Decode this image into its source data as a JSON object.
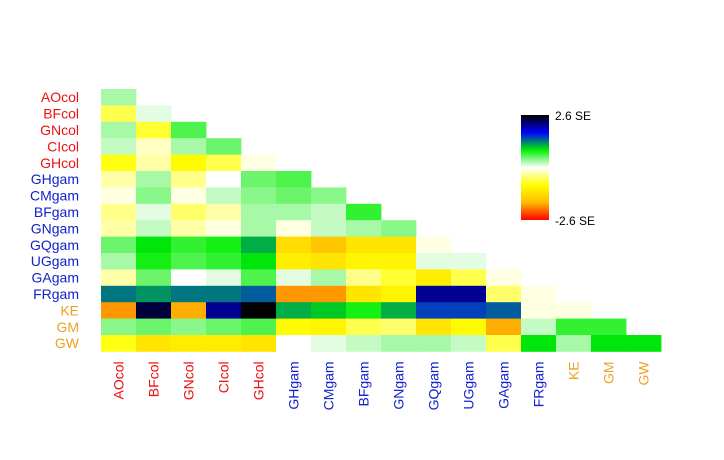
{
  "chart_data": {
    "type": "heatmap",
    "layout": "lower-triangle",
    "labels": [
      "AOcol",
      "BFcol",
      "GNcol",
      "CIcol",
      "GHcol",
      "GHgam",
      "CMgam",
      "BFgam",
      "GNgam",
      "GQgam",
      "UGgam",
      "GAgam",
      "FRgam",
      "KE",
      "GM",
      "GW"
    ],
    "groups": [
      "col",
      "col",
      "col",
      "col",
      "col",
      "gam",
      "gam",
      "gam",
      "gam",
      "gam",
      "gam",
      "gam",
      "gam",
      "other",
      "other",
      "other"
    ],
    "group_colors": {
      "col": "#ee1111",
      "gam": "#1122cc",
      "other": "#f0a020"
    },
    "values_se": [
      [
        0.3
      ],
      [
        -0.6,
        0.1
      ],
      [
        0.3,
        -0.7,
        0.6
      ],
      [
        0.2,
        -0.2,
        0.3,
        0.5
      ],
      [
        -0.8,
        -0.3,
        -0.9,
        -0.6,
        -0.1
      ],
      [
        -0.3,
        0.3,
        -0.4,
        0.0,
        0.5,
        0.6
      ],
      [
        -0.1,
        0.4,
        -0.1,
        0.2,
        0.4,
        0.5,
        0.4
      ],
      [
        -0.4,
        0.1,
        -0.5,
        -0.3,
        0.3,
        0.3,
        0.2,
        0.7
      ],
      [
        -0.3,
        0.2,
        -0.3,
        -0.1,
        0.3,
        -0.1,
        0.2,
        0.3,
        0.4
      ],
      [
        0.5,
        0.9,
        0.7,
        0.8,
        1.1,
        -1.3,
        -1.6,
        -1.2,
        -1.2,
        -0.1
      ],
      [
        0.3,
        0.8,
        0.6,
        0.7,
        0.9,
        -1.1,
        -1.2,
        -1.0,
        -1.0,
        0.1,
        0.1
      ],
      [
        -0.3,
        0.5,
        0.0,
        0.1,
        0.6,
        0.1,
        0.3,
        -0.4,
        -0.7,
        -1.1,
        -0.6,
        -0.1
      ],
      [
        1.3,
        1.2,
        1.3,
        1.3,
        1.4,
        -1.9,
        -1.9,
        -1.2,
        -1.0,
        2.1,
        2.1,
        -0.5,
        -0.1
      ],
      [
        -1.9,
        2.4,
        -1.8,
        2.1,
        2.6,
        1.1,
        1.0,
        0.8,
        1.1,
        1.5,
        1.5,
        1.4,
        -0.1,
        -0.1
      ],
      [
        0.4,
        0.5,
        0.4,
        0.5,
        0.6,
        -0.9,
        -1.0,
        -0.6,
        -0.5,
        -1.2,
        -0.9,
        -1.8,
        0.2,
        0.7,
        0.7
      ],
      [
        -0.8,
        -1.2,
        -1.1,
        -1.1,
        -1.2,
        0.0,
        0.1,
        0.2,
        0.3,
        0.3,
        0.2,
        -0.6,
        0.9,
        0.3,
        0.9,
        0.9
      ]
    ],
    "scale": {
      "min": -2.6,
      "max": 2.6,
      "min_label": "-2.6 SE",
      "max_label": "2.6 SE"
    },
    "color_stops": [
      "#ff0000",
      "#ffbb00",
      "#ffff00",
      "#ffffff",
      "#00ee00",
      "#0000ff",
      "#000000"
    ],
    "legend_position": "top-right"
  }
}
